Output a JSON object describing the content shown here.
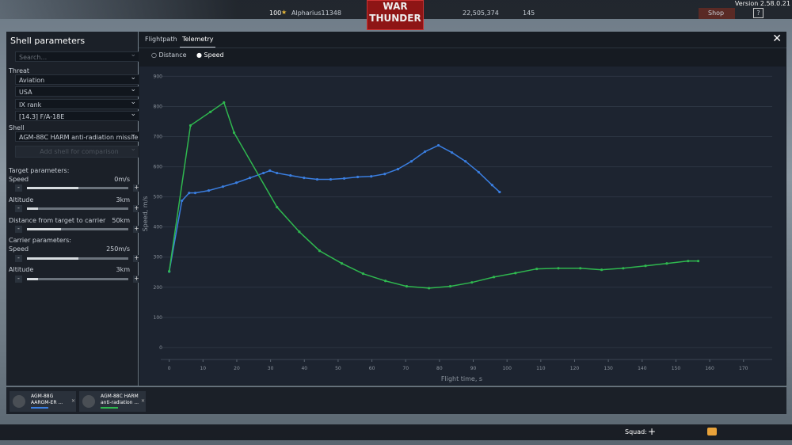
{
  "top_bar": {
    "version": "Version 2.58.0.21",
    "rank": "100",
    "username": "Alpharius11348",
    "logo_top": "WAR",
    "logo_bottom": "THUNDER",
    "silver": "22,505,374",
    "gold": "145",
    "shop": "Shop"
  },
  "panel": {
    "title": "Shell parameters",
    "search_placeholder": "Search...",
    "threat_label": "Threat",
    "threat": [
      "Aviation",
      "USA",
      "IX rank",
      "[14.3] F/A-18E"
    ],
    "shell_label": "Shell",
    "shell": "AGM-88C HARM anti-radiation missile",
    "add_shell": "Add shell for comparison",
    "target_label": "Target parameters:",
    "target": [
      {
        "label": "Speed",
        "value": "0m/s"
      },
      {
        "label": "Altitude",
        "value": "3km"
      },
      {
        "label": "Distance from target to carrier",
        "value": "50km"
      }
    ],
    "carrier_label": "Carrier parameters:",
    "carrier": [
      {
        "label": "Speed",
        "value": "250m/s"
      },
      {
        "label": "Altitude",
        "value": "3km"
      }
    ]
  },
  "tabs": [
    "Flightpath",
    "Telemetry"
  ],
  "modes": [
    "Distance",
    "Speed"
  ],
  "chart_data": {
    "type": "line",
    "x_label": "Flight time, s",
    "y_label": "Speed, m/s",
    "xlim": [
      -2.5,
      178.5
    ],
    "ylim": [
      -45,
      930
    ],
    "xticks": [
      0,
      10,
      20,
      30,
      40,
      50,
      60,
      70,
      80,
      90,
      100,
      110,
      120,
      130,
      140,
      150,
      160,
      170
    ],
    "yticks": [
      0,
      100,
      200,
      300,
      400,
      500,
      600,
      700,
      800,
      900
    ],
    "grid": true,
    "series": [
      {
        "name": "AGM-88G",
        "description": "AARGM-ER ...",
        "color": "#3a7ee0",
        "x": [
          0,
          3.75,
          5.9,
          7.7,
          11.7,
          15.9,
          19.9,
          23.9,
          27.9,
          29.8,
          31.9,
          35.9,
          39.9,
          43.8,
          47.8,
          51.8,
          55.8,
          59.8,
          63.8,
          67.7,
          71.7,
          75.7,
          79.7,
          83.7,
          87.7,
          91.6,
          95.6,
          97.8
        ],
        "values": [
          252,
          487,
          513,
          513,
          521,
          534,
          547,
          563,
          579,
          587,
          579,
          571,
          563,
          558,
          558,
          561,
          566,
          568,
          576,
          592,
          618,
          650,
          671,
          647,
          618,
          582,
          539,
          516
        ]
      },
      {
        "name": "AGM-88C HARM",
        "description": "anti-radiation ...",
        "color": "#2fb84f",
        "x": [
          0,
          6.3,
          12.2,
          16.2,
          19.2,
          31.9,
          38.5,
          44.5,
          51.1,
          57.4,
          64,
          70.3,
          76.9,
          83.2,
          89.6,
          96.1,
          102.5,
          108.8,
          115.2,
          121.7,
          128,
          134.4,
          141,
          147.3,
          153.6,
          156.6
        ],
        "values": [
          253,
          737,
          782,
          813,
          713,
          466,
          384,
          321,
          279,
          245,
          221,
          203,
          197,
          203,
          216,
          234,
          247,
          261,
          263,
          263,
          258,
          263,
          271,
          279,
          287,
          287
        ]
      }
    ]
  },
  "bottom_bar": {
    "squad": "Squad:"
  }
}
